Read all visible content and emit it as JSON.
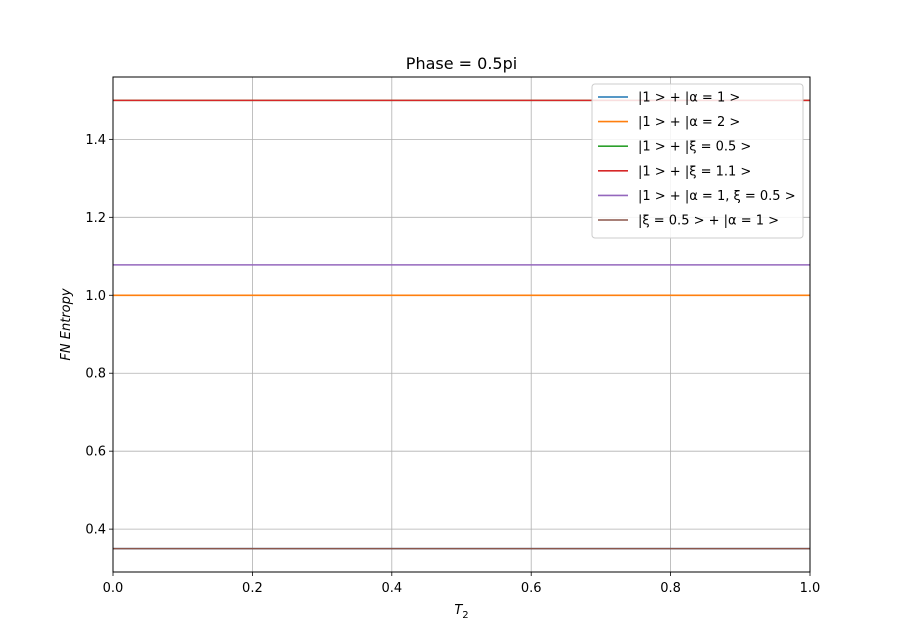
{
  "chart_data": {
    "type": "line",
    "title": "Phase = 0.5pi",
    "xlabel": "T",
    "xlabel_sub": "2",
    "ylabel": "FN Entropy",
    "xlim": [
      0.0,
      1.0
    ],
    "ylim": [
      0.29,
      1.56
    ],
    "xticks": [
      "0.0",
      "0.2",
      "0.4",
      "0.6",
      "0.8",
      "1.0"
    ],
    "yticks": [
      "0.4",
      "0.6",
      "0.8",
      "1.0",
      "1.2",
      "1.4"
    ],
    "grid": true,
    "legend_position": "top-right",
    "series": [
      {
        "name": "|1 > + |α = 1 >",
        "color": "#1f77b4",
        "x": [
          0.0,
          1.0
        ],
        "y": [
          0.35,
          0.35
        ]
      },
      {
        "name": "|1 > + |α = 2 >",
        "color": "#ff7f0e",
        "x": [
          0.0,
          1.0
        ],
        "y": [
          1.0,
          1.0
        ]
      },
      {
        "name": "|1 > + |ξ = 0.5 >",
        "color": "#2ca02c",
        "x": [
          0.0,
          1.0
        ],
        "y": [
          1.5,
          1.5
        ]
      },
      {
        "name": "|1 > + |ξ = 1.1 >",
        "color": "#d62728",
        "x": [
          0.0,
          1.0
        ],
        "y": [
          1.5,
          1.5
        ]
      },
      {
        "name": "|1 > + |α = 1,  ξ = 0.5 >",
        "color": "#9467bd",
        "x": [
          0.0,
          1.0
        ],
        "y": [
          1.078,
          1.078
        ]
      },
      {
        "name": "|ξ = 0.5 > + |α = 1 >",
        "color": "#8c564b",
        "x": [
          0.0,
          1.0
        ],
        "y": [
          0.35,
          0.35
        ]
      }
    ]
  }
}
